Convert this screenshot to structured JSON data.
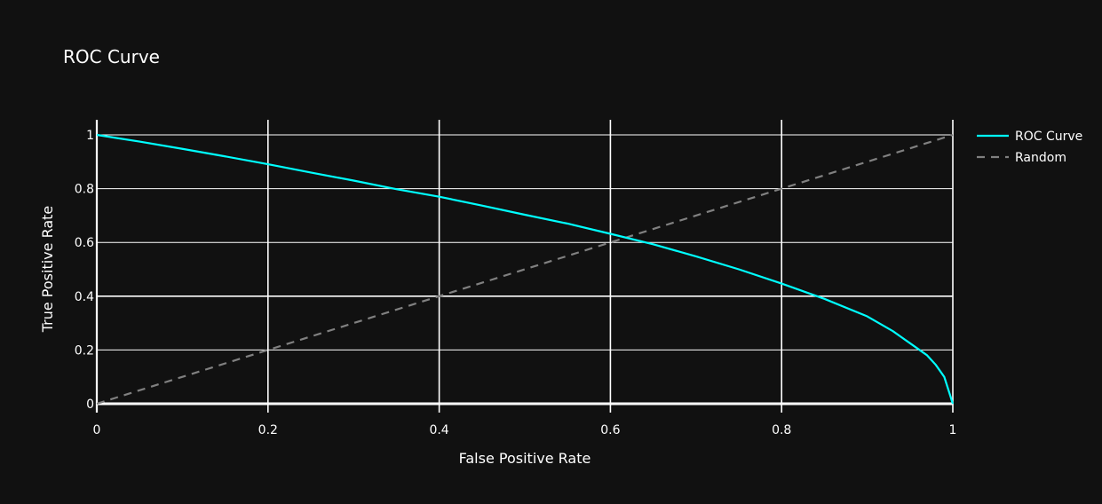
{
  "chart_data": {
    "type": "line",
    "title": "ROC Curve",
    "xlabel": "False Positive Rate",
    "ylabel": "True Positive Rate",
    "xlim": [
      0,
      1
    ],
    "ylim": [
      0,
      1
    ],
    "x_ticks": [
      "0",
      "0.2",
      "0.4",
      "0.6",
      "0.8",
      "1"
    ],
    "y_ticks": [
      "0",
      "0.2",
      "0.4",
      "0.6",
      "0.8",
      "1"
    ],
    "grid": true,
    "legend_position": "top-right",
    "background": "#111111",
    "series": [
      {
        "name": "ROC Curve",
        "color": "#00ffff",
        "style": "solid",
        "x": [
          0,
          0.05,
          0.1,
          0.15,
          0.2,
          0.25,
          0.3,
          0.35,
          0.4,
          0.45,
          0.5,
          0.55,
          0.6,
          0.65,
          0.7,
          0.75,
          0.8,
          0.85,
          0.9,
          0.93,
          0.95,
          0.97,
          0.98,
          0.99,
          1.0
        ],
        "y": [
          1.0,
          0.975,
          0.948,
          0.92,
          0.891,
          0.86,
          0.83,
          0.798,
          0.77,
          0.737,
          0.703,
          0.67,
          0.632,
          0.593,
          0.548,
          0.5,
          0.447,
          0.39,
          0.325,
          0.27,
          0.225,
          0.18,
          0.145,
          0.1,
          0.0
        ]
      },
      {
        "name": "Random",
        "color": "#808080",
        "style": "dash",
        "x": [
          0,
          1
        ],
        "y": [
          0,
          1
        ]
      }
    ]
  }
}
